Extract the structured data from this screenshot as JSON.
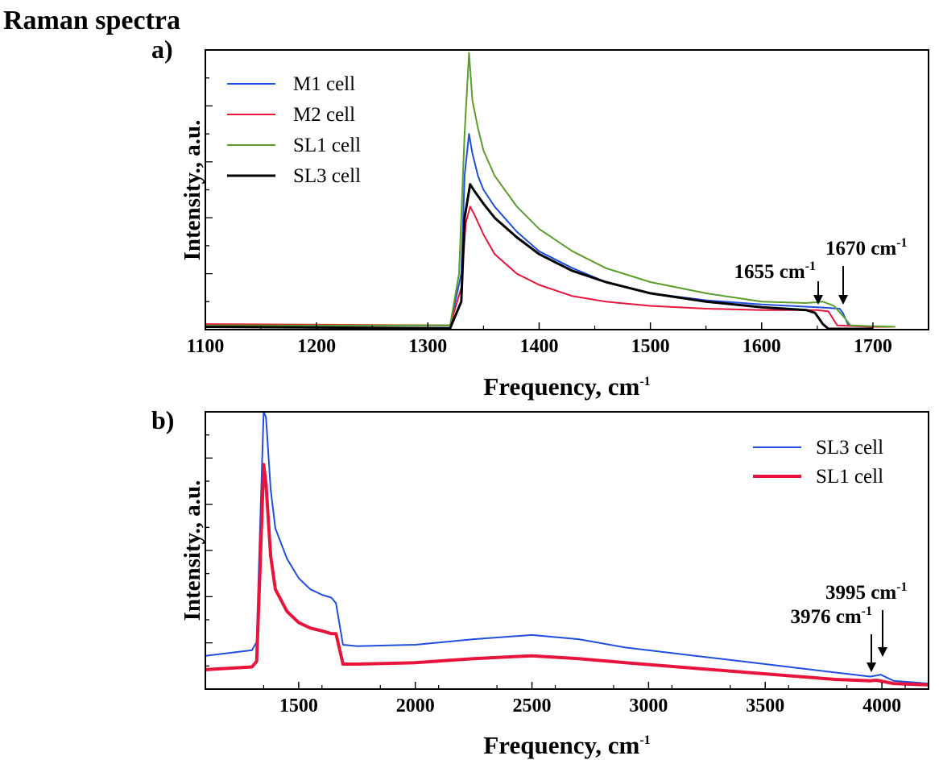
{
  "figure_title": "Raman spectra",
  "colors": {
    "blue": "#1f4fe0",
    "red": "#e8143c",
    "green": "#5a9e2a",
    "black": "#000000"
  },
  "chart_data": [
    {
      "type": "line",
      "panel_label": "a)",
      "xlabel": "Frequency, cm",
      "xlabel_sup": "-1",
      "ylabel": "Intensity., a.u.",
      "xlim": [
        1100,
        1750
      ],
      "ylim": [
        0,
        1.0
      ],
      "xticks": [
        1100,
        1200,
        1300,
        1400,
        1500,
        1600,
        1700
      ],
      "legend_position": "top-left",
      "series": [
        {
          "name": "M1 cell",
          "color": "#1f4fe0",
          "width": 2,
          "x": [
            1100,
            1320,
            1330,
            1333,
            1337,
            1340,
            1345,
            1350,
            1360,
            1380,
            1400,
            1430,
            1460,
            1500,
            1550,
            1600,
            1650,
            1670,
            1673,
            1678,
            1700,
            1720
          ],
          "y": [
            0.015,
            0.015,
            0.2,
            0.55,
            0.7,
            0.63,
            0.55,
            0.5,
            0.44,
            0.35,
            0.28,
            0.22,
            0.17,
            0.13,
            0.105,
            0.09,
            0.08,
            0.075,
            0.06,
            0.015,
            0.01,
            0.01
          ]
        },
        {
          "name": "M2 cell",
          "color": "#e8143c",
          "width": 2,
          "x": [
            1100,
            1320,
            1330,
            1334,
            1338,
            1342,
            1350,
            1360,
            1380,
            1400,
            1430,
            1460,
            1500,
            1550,
            1600,
            1650,
            1660,
            1668,
            1700,
            1720
          ],
          "y": [
            0.02,
            0.015,
            0.15,
            0.38,
            0.44,
            0.41,
            0.34,
            0.27,
            0.2,
            0.16,
            0.12,
            0.1,
            0.085,
            0.075,
            0.07,
            0.07,
            0.065,
            0.015,
            0.01,
            0.01
          ]
        },
        {
          "name": "SL1 cell",
          "color": "#5a9e2a",
          "width": 2,
          "x": [
            1100,
            1320,
            1328,
            1333,
            1337,
            1340,
            1345,
            1350,
            1360,
            1380,
            1400,
            1430,
            1460,
            1500,
            1550,
            1600,
            1640,
            1655,
            1665,
            1675,
            1680,
            1700,
            1720
          ],
          "y": [
            0.015,
            0.015,
            0.2,
            0.7,
            0.99,
            0.82,
            0.72,
            0.64,
            0.55,
            0.44,
            0.36,
            0.28,
            0.22,
            0.17,
            0.13,
            0.1,
            0.095,
            0.1,
            0.085,
            0.04,
            0.015,
            0.012,
            0.01
          ]
        },
        {
          "name": "SL3 cell",
          "color": "#000000",
          "width": 3,
          "x": [
            1100,
            1320,
            1330,
            1333,
            1338,
            1341,
            1350,
            1360,
            1380,
            1400,
            1430,
            1460,
            1500,
            1550,
            1600,
            1640,
            1648,
            1655,
            1660,
            1700
          ],
          "y": [
            0.01,
            0.005,
            0.1,
            0.4,
            0.52,
            0.5,
            0.45,
            0.4,
            0.33,
            0.27,
            0.21,
            0.17,
            0.13,
            0.1,
            0.08,
            0.07,
            0.06,
            0.02,
            0.003,
            0.003
          ]
        }
      ],
      "annotations": [
        {
          "text": "1655 cm",
          "sup": "-1",
          "x": 1655,
          "y": 0.07
        },
        {
          "text": "1670 cm",
          "sup": "-1",
          "x": 1674,
          "y": 0.07
        }
      ]
    },
    {
      "type": "line",
      "panel_label": "b)",
      "xlabel": "Frequency, cm",
      "xlabel_sup": "-1",
      "ylabel": "Intensity., a.u.",
      "xlim": [
        1100,
        4200
      ],
      "ylim": [
        0,
        1.0
      ],
      "xticks": [
        1500,
        2000,
        2500,
        3000,
        3500,
        4000
      ],
      "legend_position": "top-right",
      "series": [
        {
          "name": "SL3 cell",
          "color": "#1f4fe0",
          "width": 2,
          "x": [
            1100,
            1300,
            1320,
            1335,
            1350,
            1360,
            1380,
            1400,
            1450,
            1500,
            1550,
            1600,
            1640,
            1660,
            1690,
            1750,
            2000,
            2250,
            2500,
            2700,
            2900,
            3200,
            3500,
            3800,
            3950,
            3995,
            4050,
            4200
          ],
          "y": [
            0.12,
            0.14,
            0.17,
            0.6,
            1.0,
            0.98,
            0.72,
            0.58,
            0.47,
            0.4,
            0.36,
            0.34,
            0.33,
            0.31,
            0.16,
            0.155,
            0.16,
            0.18,
            0.195,
            0.18,
            0.15,
            0.12,
            0.09,
            0.06,
            0.045,
            0.052,
            0.03,
            0.02
          ]
        },
        {
          "name": "SL1  cell",
          "color": "#e8143c",
          "width": 4,
          "x": [
            1100,
            1300,
            1320,
            1335,
            1350,
            1360,
            1380,
            1400,
            1450,
            1500,
            1550,
            1600,
            1640,
            1660,
            1690,
            1750,
            2000,
            2250,
            2500,
            2700,
            2900,
            3200,
            3500,
            3800,
            3950,
            3976,
            4050,
            4200
          ],
          "y": [
            0.07,
            0.08,
            0.1,
            0.45,
            0.81,
            0.74,
            0.48,
            0.36,
            0.28,
            0.24,
            0.22,
            0.21,
            0.2,
            0.2,
            0.09,
            0.09,
            0.095,
            0.11,
            0.12,
            0.11,
            0.095,
            0.075,
            0.055,
            0.035,
            0.03,
            0.032,
            0.02,
            0.015
          ]
        }
      ],
      "annotations": [
        {
          "text": "3976 cm",
          "sup": "-1",
          "x": 3976,
          "y": 0.04
        },
        {
          "text": "3995 cm",
          "sup": "-1",
          "x": 4005,
          "y": 0.05
        }
      ]
    }
  ]
}
